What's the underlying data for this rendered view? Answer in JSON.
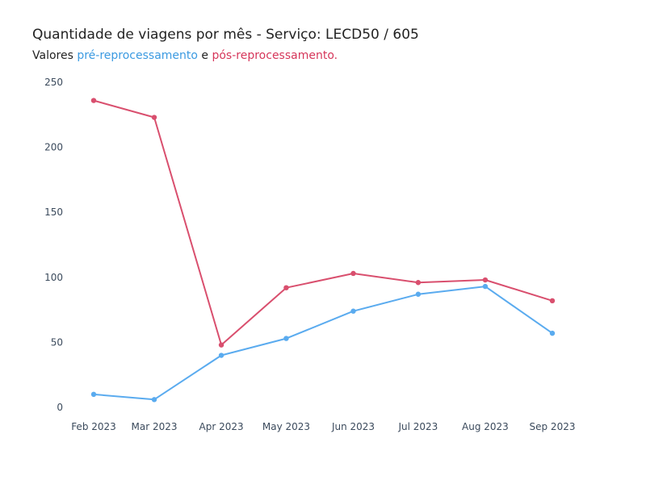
{
  "header": {
    "title": "Quantidade de viagens por mês - Serviço: LECD50 / 605",
    "subtitle_prefix": "Valores ",
    "subtitle_pre": "pré-reprocessamento",
    "subtitle_and": " e ",
    "subtitle_pos": "pós-reprocessamento."
  },
  "chart_data": {
    "type": "line",
    "title": "Quantidade de viagens por mês - Serviço: LECD50 / 605",
    "x": [
      "Feb 2023",
      "Mar 2023",
      "Apr 2023",
      "May 2023",
      "Jun 2023",
      "Jul 2023",
      "Aug 2023",
      "Sep 2023"
    ],
    "x_dates": [
      "2023-02-01",
      "2023-03-01",
      "2023-04-01",
      "2023-05-01",
      "2023-06-01",
      "2023-07-01",
      "2023-08-01",
      "2023-09-01"
    ],
    "series": [
      {
        "name": "pré-reprocessamento",
        "color": "#5aabef",
        "values": [
          10,
          6,
          40,
          53,
          74,
          87,
          93,
          57
        ]
      },
      {
        "name": "pós-reprocessamento",
        "color": "#d94f6e",
        "values": [
          236,
          223,
          48,
          92,
          103,
          96,
          98,
          82
        ]
      }
    ],
    "ylim": [
      0,
      250
    ],
    "yticks": [
      0,
      50,
      100,
      150,
      200,
      250
    ],
    "grid": false,
    "legend": "none"
  }
}
